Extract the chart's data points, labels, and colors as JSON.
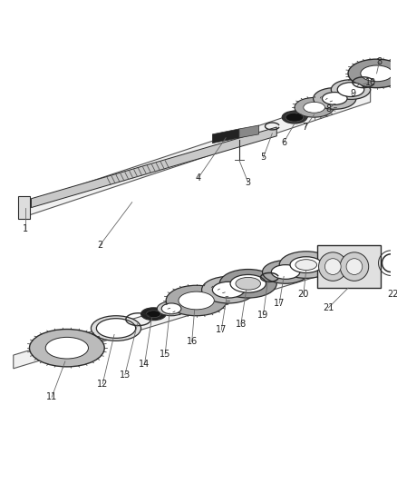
{
  "bg_color": "#ffffff",
  "lc": "#555555",
  "dc": "#2a2a2a",
  "mc": "#888888",
  "fc_light": "#cccccc",
  "fc_med": "#aaaaaa",
  "fc_dark": "#444444",
  "fc_white": "#eeeeee",
  "label_fs": 7,
  "label_color": "#222222"
}
